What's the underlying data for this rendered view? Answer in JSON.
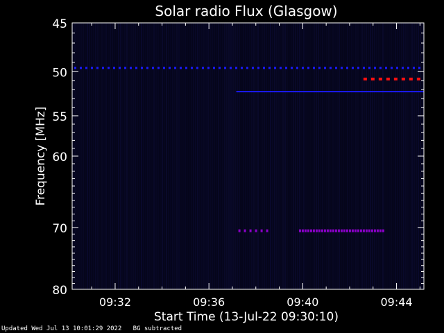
{
  "chart_data": {
    "type": "heatmap",
    "title": "Solar radio Flux (Glasgow)",
    "ylabel": "Frequency [MHz]",
    "xlabel": "Start Time (13-Jul-22 09:30:10)",
    "y_scale": "log",
    "ylim": [
      80,
      45
    ],
    "y_ticks": [
      45,
      50,
      55,
      60,
      70,
      80
    ],
    "x_unit": "minutes",
    "xlim_minutes": [
      "09:30:10",
      "09:45:10"
    ],
    "x_ticks": [
      "09:32",
      "09:36",
      "09:40",
      "09:44"
    ],
    "colors": {
      "background": "#000000",
      "plot_bg": "#05051a",
      "axis": "#ffffff",
      "low": "#1a1aff",
      "mid": "#8a00c8",
      "high": "#ff1010"
    },
    "features": [
      {
        "freq_mhz": 49.6,
        "time_start": "09:30:10",
        "time_end": "09:45:10",
        "intensity": "low",
        "pattern": "dashed"
      },
      {
        "freq_mhz": 52.2,
        "time_start": "09:37:10",
        "time_end": "09:45:10",
        "intensity": "low",
        "pattern": "solid"
      },
      {
        "freq_mhz": 50.8,
        "time_start": "09:42:30",
        "time_end": "09:45:10",
        "intensity": "high",
        "pattern": "dashed"
      },
      {
        "freq_mhz": 70.5,
        "time_start": "09:37:10",
        "time_end": "09:38:30",
        "intensity": "mid",
        "pattern": "dashed"
      },
      {
        "freq_mhz": 70.5,
        "time_start": "09:39:45",
        "time_end": "09:43:30",
        "intensity": "mid",
        "pattern": "dense"
      }
    ]
  },
  "footer": {
    "updated": "Updated Wed Jul 13 10:01:29 2022",
    "note": "BG subtracted"
  }
}
